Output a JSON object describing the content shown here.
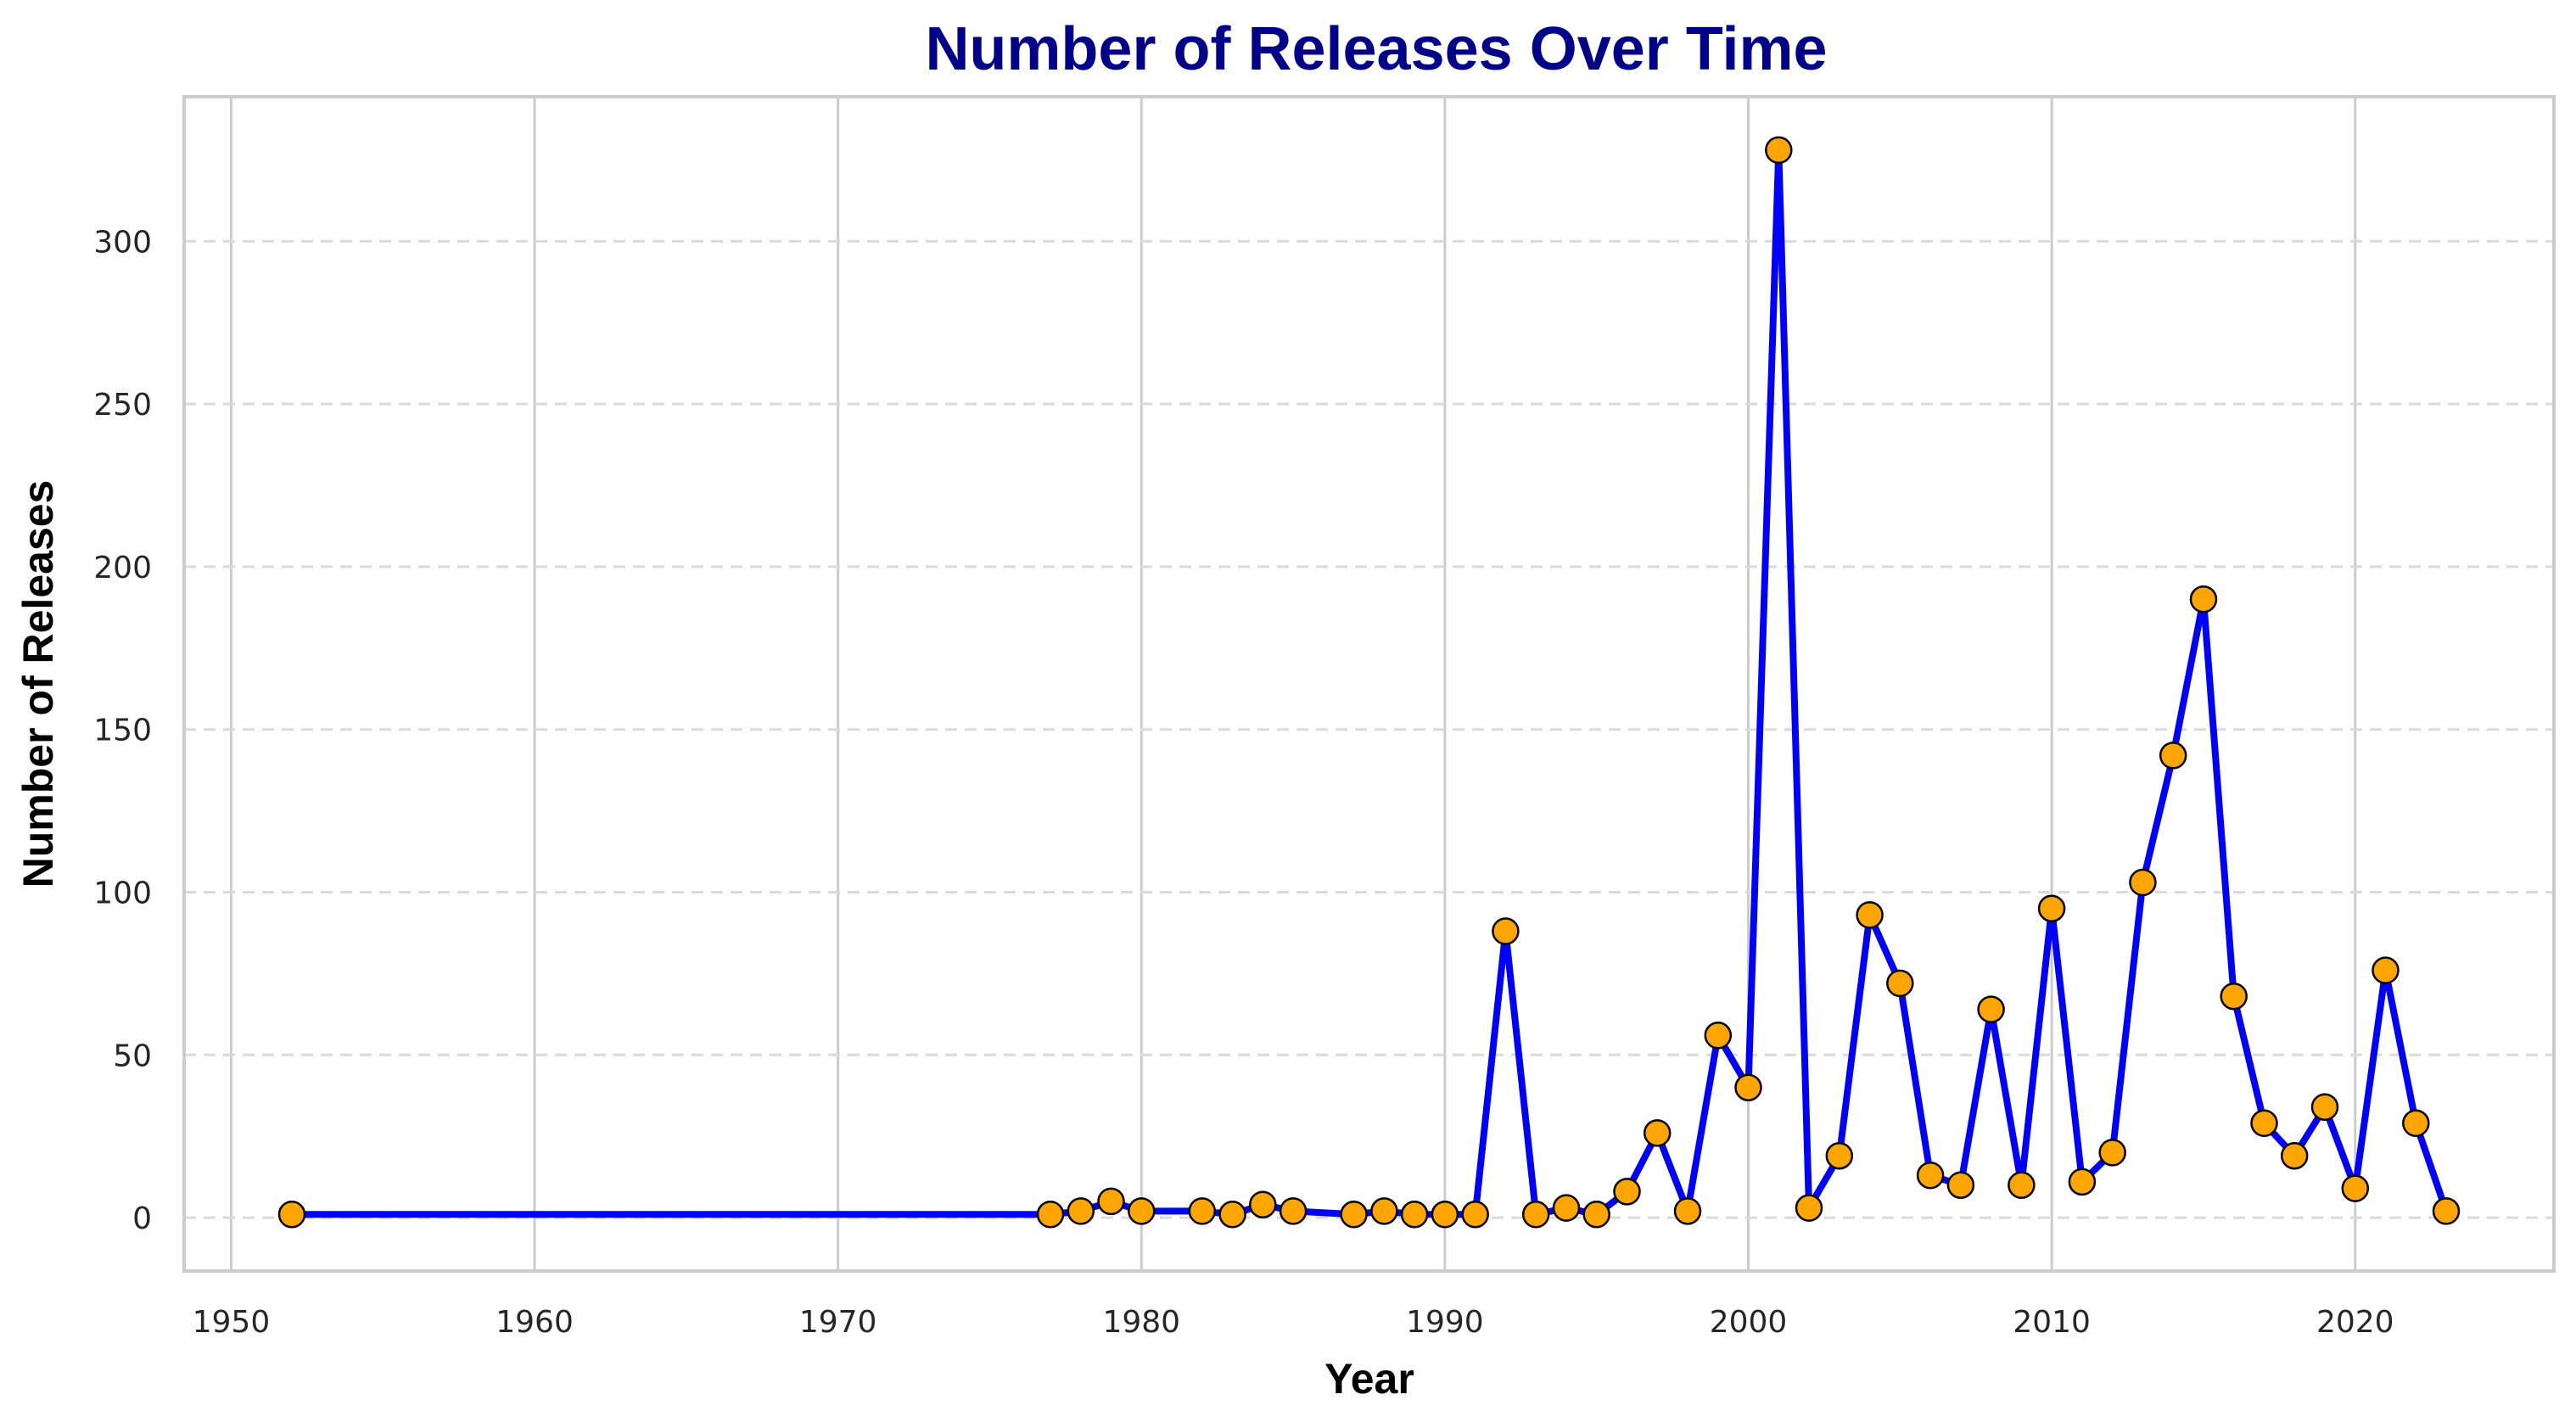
{
  "chart_data": {
    "type": "line",
    "title": "Number of Releases Over Time",
    "xlabel": "Year",
    "ylabel": "Number of Releases",
    "xlim": [
      1948.45,
      1926.55
    ],
    "ylim": [
      -16.4,
      344.4
    ],
    "xticks": [
      1950,
      1960,
      1970,
      1980,
      1990,
      2000,
      2010,
      2020
    ],
    "yticks": [
      0,
      50,
      100,
      150,
      200,
      250,
      300
    ],
    "grid": {
      "x": "solid",
      "y": "dashed"
    },
    "legend": "none",
    "colors": {
      "line": "#0000ff",
      "marker_fill": "#ffa500",
      "marker_edge": "#000000",
      "title": "#00008b",
      "frame": "#cccccc",
      "grid": "#cccccc"
    },
    "series": [
      {
        "x": [
          1952,
          1977,
          1978,
          1979,
          1980,
          1982,
          1983,
          1984,
          1985,
          1987,
          1988,
          1989,
          1990,
          1991,
          1992,
          1993,
          1994,
          1995,
          1996,
          1997,
          1998,
          1999,
          2000,
          2001,
          2002,
          2003,
          2004,
          2005,
          2006,
          2007,
          2008,
          2009,
          2010,
          2011,
          2012,
          2013,
          2014,
          2015,
          2016,
          2017,
          2018,
          2019,
          2020,
          2021,
          2022,
          2023
        ],
        "y": [
          1,
          1,
          2,
          5,
          2,
          2,
          1,
          4,
          2,
          1,
          2,
          1,
          1,
          1,
          88,
          1,
          3,
          1,
          8,
          26,
          2,
          56,
          40,
          328,
          3,
          19,
          93,
          72,
          13,
          10,
          64,
          10,
          95,
          11,
          20,
          103,
          142,
          190,
          68,
          29,
          19,
          34,
          9,
          76,
          29,
          2
        ]
      }
    ]
  }
}
